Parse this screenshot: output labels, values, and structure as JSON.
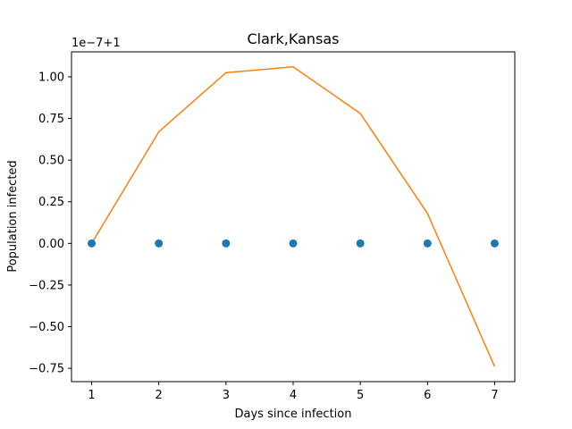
{
  "chart_data": {
    "type": "line",
    "title": "Clark,Kansas",
    "xlabel": "Days since infection",
    "ylabel": "Population infected",
    "offset_label": "1e−7+1",
    "xlim": [
      0.7,
      7.3
    ],
    "ylim": [
      -0.83,
      1.15
    ],
    "x_ticks": [
      "1",
      "2",
      "3",
      "4",
      "5",
      "6",
      "7"
    ],
    "y_ticks": [
      "−0.75",
      "−0.50",
      "−0.25",
      "0.00",
      "0.25",
      "0.50",
      "0.75",
      "1.00"
    ],
    "grid": false,
    "series": [
      {
        "kind": "scatter",
        "color": "#1f77b4",
        "x": [
          1,
          2,
          3,
          4,
          5,
          6,
          7
        ],
        "y": [
          0.0,
          0.0,
          0.0,
          0.0,
          0.0,
          0.0,
          0.0
        ]
      },
      {
        "kind": "line",
        "color": "#ff7f0e",
        "x": [
          1,
          2,
          3,
          4,
          5,
          6,
          7
        ],
        "y": [
          0.0,
          0.67,
          1.025,
          1.06,
          0.78,
          0.18,
          -0.74
        ]
      }
    ]
  }
}
